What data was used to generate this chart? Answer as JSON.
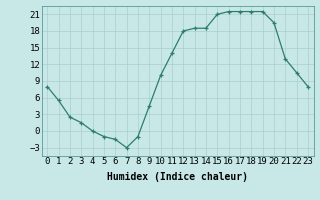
{
  "x": [
    0,
    1,
    2,
    3,
    4,
    5,
    6,
    7,
    8,
    9,
    10,
    11,
    12,
    13,
    14,
    15,
    16,
    17,
    18,
    19,
    20,
    21,
    22,
    23
  ],
  "y": [
    8,
    5.5,
    2.5,
    1.5,
    0,
    -1,
    -1.5,
    -3,
    -1,
    4.5,
    10,
    14,
    18,
    18.5,
    18.5,
    21,
    21.5,
    21.5,
    21.5,
    21.5,
    19.5,
    13,
    10.5,
    8
  ],
  "line_color": "#2d7d6e",
  "marker_color": "#2d7d6e",
  "bg_color": "#c8e8e8",
  "grid_color": "#aacece",
  "xlabel": "Humidex (Indice chaleur)",
  "xlim": [
    -0.5,
    23.5
  ],
  "ylim": [
    -4.5,
    22.5
  ],
  "yticks": [
    -3,
    0,
    3,
    6,
    9,
    12,
    15,
    18,
    21
  ],
  "xtick_labels": [
    "0",
    "1",
    "2",
    "3",
    "4",
    "5",
    "6",
    "7",
    "8",
    "9",
    "10",
    "11",
    "12",
    "13",
    "14",
    "15",
    "16",
    "17",
    "18",
    "19",
    "20",
    "21",
    "22",
    "23"
  ],
  "xlabel_fontsize": 7,
  "tick_fontsize": 6.5
}
